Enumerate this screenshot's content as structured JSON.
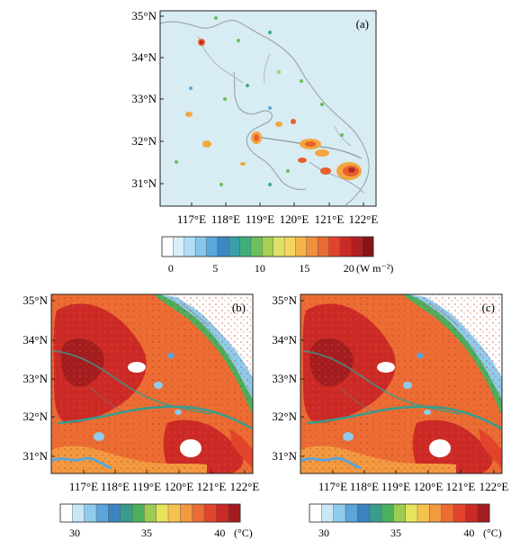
{
  "panels": [
    {
      "id": "a",
      "label": "(a)",
      "lat_ticks": [
        "35°N",
        "34°N",
        "33°N",
        "32°N",
        "31°N"
      ],
      "lon_ticks": [
        "117°E",
        "118°E",
        "119°E",
        "120°E",
        "121°E",
        "122°E"
      ]
    },
    {
      "id": "b",
      "label": "(b)",
      "lat_ticks": [
        "35°N",
        "34°N",
        "33°N",
        "32°N",
        "31°N"
      ],
      "lon_ticks": [
        "117°E",
        "118°E",
        "119°E",
        "120°E",
        "121°E",
        "122°E"
      ]
    },
    {
      "id": "c",
      "label": "(c)",
      "lat_ticks": [
        "35°N",
        "34°N",
        "33°N",
        "32°N",
        "31°N"
      ],
      "lon_ticks": [
        "117°E",
        "118°E",
        "119°E",
        "120°E",
        "121°E",
        "122°E"
      ]
    }
  ],
  "colorbar_flux": {
    "tick_labels": [
      "0",
      "5",
      "10",
      "15",
      "20"
    ],
    "unit": "(W m⁻²)",
    "colors": [
      "#ffffff",
      "#d8eefb",
      "#b2def5",
      "#86c7ec",
      "#5aa9dc",
      "#3d87c4",
      "#3a9ea7",
      "#3fae7c",
      "#6cbf5b",
      "#a7cf52",
      "#dde36a",
      "#f5d55e",
      "#f5b24b",
      "#f08f3d",
      "#e96b33",
      "#e0452b",
      "#cc2a26",
      "#b01e22",
      "#8a1414"
    ]
  },
  "colorbar_temp": {
    "tick_labels": [
      "30",
      "35",
      "40"
    ],
    "unit": "(°C)",
    "colors": [
      "#ffffff",
      "#c9e7f7",
      "#8fcbec",
      "#5aa5d9",
      "#3b84c1",
      "#3a9c8c",
      "#4caf5e",
      "#9ccc52",
      "#e8e35c",
      "#f6c24f",
      "#f39a40",
      "#ec6d33",
      "#e2442b",
      "#cc2a26",
      "#a31c1f"
    ]
  }
}
